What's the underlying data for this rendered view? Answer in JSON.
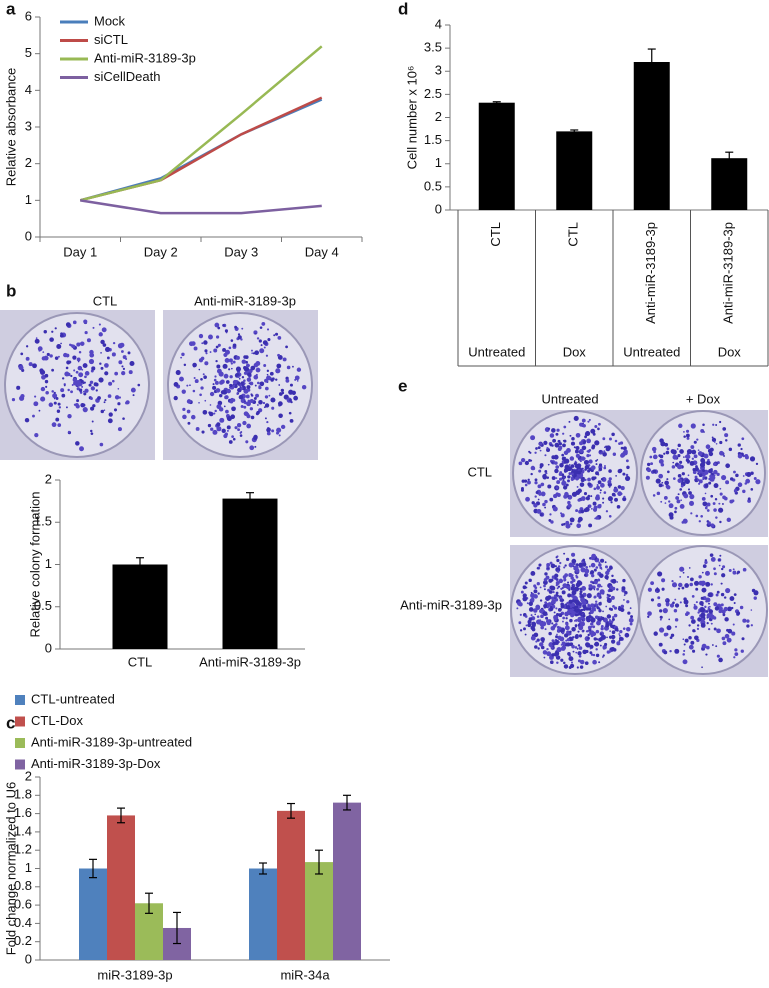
{
  "chart_data": [
    {
      "type": "line",
      "panel": "a",
      "ylabel": "Relative absorbance",
      "categories": [
        "Day 1",
        "Day 2",
        "Day 3",
        "Day 4"
      ],
      "series": [
        {
          "name": "Mock",
          "color": "#4a7ebb",
          "values": [
            1,
            1.6,
            2.8,
            3.75
          ]
        },
        {
          "name": "siCTL",
          "color": "#be4b48",
          "values": [
            1,
            1.55,
            2.8,
            3.8
          ]
        },
        {
          "name": "Anti-miR-3189-3p",
          "color": "#98b954",
          "values": [
            1,
            1.55,
            3.35,
            5.2
          ]
        },
        {
          "name": "siCellDeath",
          "color": "#7d60a0",
          "values": [
            1,
            0.65,
            0.65,
            0.85
          ]
        }
      ],
      "ylim": [
        0,
        6
      ],
      "yticks": [
        0,
        1,
        2,
        3,
        4,
        5,
        6
      ]
    },
    {
      "type": "bar",
      "ylabel": "Relative colony formation",
      "categories": [
        "CTL",
        "Anti-miR-3189-3p"
      ],
      "values": [
        1,
        1.78
      ],
      "errors": [
        0.08,
        0.07
      ],
      "color": "#000000",
      "ylim": [
        0,
        2
      ],
      "yticks": [
        0,
        0.5,
        1,
        1.5,
        2
      ]
    },
    {
      "type": "bar",
      "panel": "c",
      "ylabel": "Fold change normalized to U6",
      "categories": [
        "miR-3189-3p",
        "miR-34a"
      ],
      "series": [
        {
          "name": "CTL-untreated",
          "color": "#4f81bd",
          "values": [
            1,
            1
          ],
          "errors": [
            0.1,
            0.06
          ]
        },
        {
          "name": "CTL-Dox",
          "color": "#c0504d",
          "values": [
            1.58,
            1.63
          ],
          "errors": [
            0.08,
            0.08
          ]
        },
        {
          "name": "Anti-miR-3189-3p-untreated",
          "color": "#9bbb59",
          "values": [
            0.62,
            1.07
          ],
          "errors": [
            0.11,
            0.13
          ]
        },
        {
          "name": "Anti-miR-3189-3p-Dox",
          "color": "#8064a2",
          "values": [
            0.35,
            1.72
          ],
          "errors": [
            0.17,
            0.08
          ]
        }
      ],
      "ylim": [
        0,
        2
      ],
      "yticks": [
        0,
        0.2,
        0.4,
        0.6,
        0.8,
        1,
        1.2,
        1.4,
        1.6,
        1.8,
        2
      ]
    },
    {
      "type": "bar",
      "panel": "d",
      "ylabel": "Cell number x 10⁶",
      "categories": [
        "CTL",
        "CTL",
        "Anti-miR-3189-3p",
        "Anti-miR-3189-3p"
      ],
      "category_conditions": [
        "Untreated",
        "Dox",
        "Untreated",
        "Dox"
      ],
      "values": [
        2.32,
        1.7,
        3.2,
        1.12
      ],
      "errors": [
        0.02,
        0.03,
        0.28,
        0.13
      ],
      "color": "#000000",
      "ylim": [
        0,
        4
      ],
      "yticks": [
        0,
        0.5,
        1,
        1.5,
        2,
        2.5,
        3,
        3.5,
        4
      ]
    }
  ],
  "image_panels": [
    {
      "panel": "b",
      "column_labels": [
        "CTL",
        "Anti-miR-3189-3p"
      ]
    },
    {
      "panel": "e",
      "column_labels": [
        "Untreated",
        "+ Dox"
      ],
      "row_labels": [
        "CTL",
        "Anti-miR-3189-3p"
      ]
    }
  ]
}
